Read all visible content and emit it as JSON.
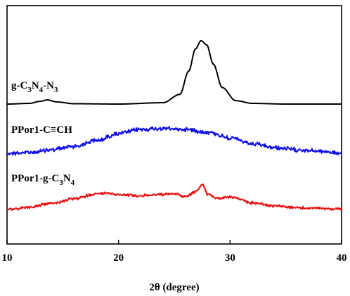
{
  "chart_data": {
    "type": "line",
    "title": "",
    "xlabel": "2θ (degree)",
    "ylabel": "",
    "xlim": [
      10,
      40
    ],
    "xticks": [
      "10",
      "20",
      "30",
      "40"
    ],
    "y_ticks_shown": false,
    "grid": false,
    "legend": "none (series labels placed above each curve)",
    "series": [
      {
        "name_parts": [
          {
            "text": "g-C",
            "sub": false
          },
          {
            "text": "3",
            "sub": true
          },
          {
            "text": "N",
            "sub": false
          },
          {
            "text": "4",
            "sub": true
          },
          {
            "text": "-N",
            "sub": false
          },
          {
            "text": "3",
            "sub": true
          }
        ],
        "color": "#000000",
        "x": [
          10,
          12,
          13,
          13.6,
          14.5,
          16,
          20,
          24,
          25.5,
          26.3,
          26.9,
          27.4,
          27.9,
          28.5,
          29.3,
          30.5,
          32,
          35,
          40
        ],
        "y": [
          0,
          0.01,
          0.04,
          0.06,
          0.03,
          0.005,
          0,
          0.02,
          0.14,
          0.48,
          0.8,
          0.92,
          0.86,
          0.58,
          0.24,
          0.05,
          0.01,
          0,
          0
        ]
      },
      {
        "name": "PPor1-C≡CH",
        "color": "#1010e8",
        "x": [
          10,
          12,
          14,
          16,
          18,
          20,
          22,
          24,
          26,
          28,
          30,
          32,
          34,
          36,
          38,
          40
        ],
        "y": [
          0.02,
          0.03,
          0.07,
          0.12,
          0.2,
          0.3,
          0.36,
          0.37,
          0.36,
          0.32,
          0.24,
          0.15,
          0.1,
          0.07,
          0.05,
          0.02
        ]
      },
      {
        "name_parts": [
          {
            "text": "PPor1-g-C",
            "sub": false
          },
          {
            "text": "3",
            "sub": true
          },
          {
            "text": "N",
            "sub": false
          },
          {
            "text": "4",
            "sub": true
          }
        ],
        "color": "#e81010",
        "x": [
          10,
          12,
          14,
          16,
          18,
          19,
          20,
          22,
          24,
          25,
          26,
          27,
          27.5,
          28,
          29,
          30,
          32,
          34,
          36,
          38,
          40
        ],
        "y": [
          0.02,
          0.06,
          0.12,
          0.19,
          0.27,
          0.28,
          0.26,
          0.24,
          0.26,
          0.27,
          0.23,
          0.31,
          0.42,
          0.26,
          0.2,
          0.22,
          0.13,
          0.08,
          0.05,
          0.04,
          0.03
        ]
      }
    ]
  }
}
